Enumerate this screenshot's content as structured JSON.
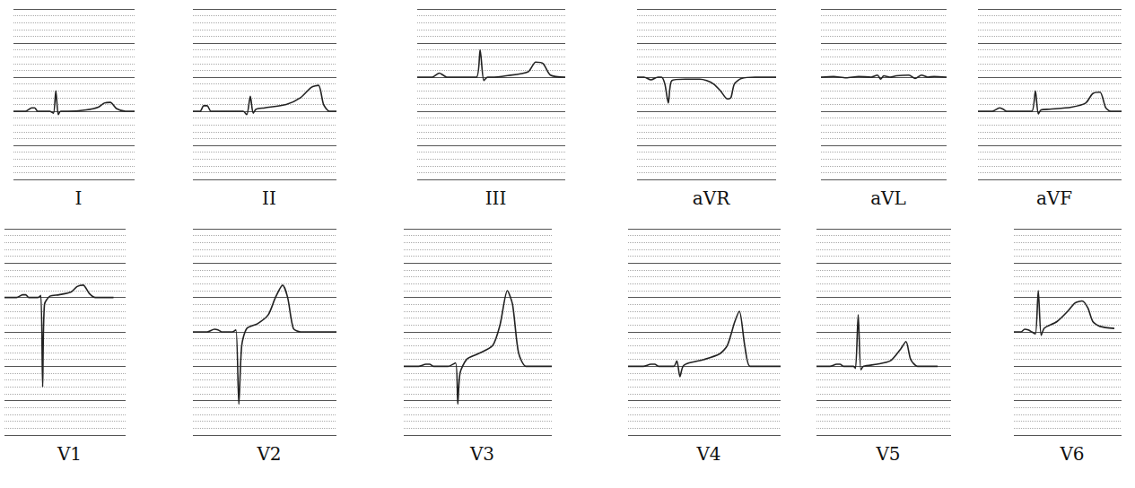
{
  "chart_data": [
    {
      "type": "line",
      "title": "I",
      "color": "#222222",
      "grid": true,
      "tick_labels": false,
      "x": [
        0,
        2,
        3,
        3.5,
        4,
        6,
        6.6,
        7,
        7.4,
        7.8,
        9,
        12,
        14,
        15,
        16,
        17,
        18.5,
        20
      ],
      "values": [
        0,
        0,
        0.5,
        0.5,
        0,
        0,
        -0.3,
        3,
        -0.5,
        0,
        0,
        0.2,
        0.6,
        1.2,
        1.3,
        0.4,
        0,
        0
      ],
      "xlim": [
        0,
        20
      ],
      "xticks": [
        0,
        5,
        10,
        15,
        20
      ],
      "ylim": [
        -10,
        15
      ],
      "yticks": [
        -10,
        -5,
        0,
        5,
        10,
        15
      ]
    },
    {
      "type": "line",
      "title": "II",
      "color": "#222222",
      "grid": true,
      "tick_labels": false,
      "x": [
        0,
        1,
        1.5,
        2,
        2.5,
        3,
        5,
        7,
        7.5,
        8,
        8.4,
        8.8,
        10,
        13,
        15,
        16.5,
        17.5,
        18.2,
        19,
        20
      ],
      "values": [
        0,
        0,
        0.8,
        0.8,
        0,
        0,
        0,
        0,
        -0.5,
        2.2,
        -0.3,
        0.3,
        0.5,
        1,
        2,
        3.5,
        3.8,
        1,
        0,
        0
      ],
      "xlim": [
        0,
        20
      ],
      "xticks": [
        0,
        5,
        10,
        15,
        20
      ],
      "ylim": [
        -10,
        15
      ],
      "yticks": [
        -10,
        -5,
        0,
        5,
        10,
        15
      ]
    },
    {
      "type": "line",
      "title": "III",
      "color": "#222222",
      "grid": true,
      "tick_labels": false,
      "x": [
        0,
        2,
        3,
        3.5,
        4,
        6,
        8,
        8.5,
        9,
        9.5,
        10,
        12,
        15,
        16,
        17,
        18,
        20
      ],
      "values": [
        0,
        0,
        0.6,
        0.3,
        0,
        0,
        0,
        4,
        -0.5,
        0,
        0,
        0.2,
        0.8,
        2.2,
        2,
        0.3,
        0
      ],
      "xlim": [
        0,
        20
      ],
      "xticks": [
        0,
        5,
        10,
        15,
        20
      ],
      "ylim": [
        -15,
        10
      ],
      "yticks": [
        -15,
        -10,
        -5,
        0,
        5,
        10
      ]
    },
    {
      "type": "line",
      "title": "aVR",
      "color": "#222222",
      "grid": true,
      "tick_labels": false,
      "x": [
        0,
        1,
        2,
        3,
        3.5,
        4,
        4.5,
        5,
        7,
        9,
        10,
        11,
        12,
        13,
        13.5,
        14,
        15,
        17,
        20
      ],
      "values": [
        0,
        0,
        -0.4,
        0,
        0,
        -1,
        -3.8,
        -0.5,
        -0.3,
        -0.3,
        -0.5,
        -1,
        -2,
        -3.2,
        -3,
        -1,
        -0.2,
        0,
        0
      ],
      "xlim": [
        0,
        20
      ],
      "xticks": [
        0,
        5,
        10,
        15,
        20
      ],
      "ylim": [
        -15,
        10
      ],
      "yticks": [
        -15,
        -10,
        -5,
        0,
        5,
        10
      ]
    },
    {
      "type": "line",
      "title": "aVL",
      "color": "#222222",
      "grid": true,
      "tick_labels": false,
      "x": [
        0,
        2,
        4,
        6,
        8,
        9,
        9.5,
        10,
        11,
        12,
        14,
        15,
        16,
        17,
        18,
        20
      ],
      "values": [
        0,
        0.1,
        -0.1,
        0.1,
        0,
        0.3,
        -0.3,
        0.2,
        0,
        0.2,
        0.3,
        -0.2,
        0.3,
        0,
        0.1,
        0
      ],
      "xlim": [
        0,
        20
      ],
      "xticks": [
        0,
        5,
        10,
        15,
        20
      ],
      "ylim": [
        -15,
        10
      ],
      "yticks": [
        -15,
        -10,
        -5,
        0,
        5,
        10
      ]
    },
    {
      "type": "line",
      "title": "aVF",
      "color": "#222222",
      "grid": true,
      "tick_labels": false,
      "x": [
        0,
        2,
        3,
        3.5,
        4,
        6,
        7.5,
        8,
        8.4,
        8.8,
        10,
        13,
        15,
        16,
        17,
        17.8,
        18.5,
        20
      ],
      "values": [
        0,
        0,
        0.5,
        0.3,
        0,
        0,
        0,
        3,
        -0.4,
        0.2,
        0.3,
        0.6,
        1.2,
        2.6,
        2.8,
        0.5,
        0,
        0
      ],
      "xlim": [
        0,
        20
      ],
      "xticks": [
        0,
        5,
        10,
        15,
        20
      ],
      "ylim": [
        -10,
        15
      ],
      "yticks": [
        -10,
        -5,
        0,
        5,
        10,
        15
      ]
    },
    {
      "type": "line",
      "title": "V1",
      "color": "#222222",
      "grid": true,
      "tick_labels": false,
      "x": [
        0,
        2,
        3,
        3.5,
        4,
        5.5,
        6,
        6.3,
        6.6,
        7.5,
        9,
        11,
        12,
        13,
        14,
        15,
        16,
        18
      ],
      "values": [
        0,
        0,
        0.4,
        0.4,
        0,
        0,
        0.3,
        -13,
        -1,
        0.2,
        0.4,
        0.8,
        1.6,
        1.8,
        0.6,
        0,
        0,
        0
      ],
      "xlim": [
        0,
        20
      ],
      "xticks": [
        0,
        5,
        10,
        15,
        20
      ],
      "ylim": [
        -20,
        10
      ],
      "yticks": [
        -20,
        -15,
        -10,
        -5,
        0,
        5,
        10
      ]
    },
    {
      "type": "line",
      "title": "V2",
      "color": "#222222",
      "grid": true,
      "tick_labels": false,
      "x": [
        0,
        2,
        3,
        3.5,
        4,
        5.5,
        6,
        6.4,
        6.8,
        7.5,
        9,
        10.5,
        11.5,
        12.5,
        13.2,
        14,
        15,
        17,
        20
      ],
      "values": [
        0,
        0,
        0.4,
        0.3,
        0,
        0,
        0.3,
        -10.5,
        -2,
        0.5,
        1.2,
        2.5,
        5,
        6.8,
        5,
        0.5,
        0,
        0,
        0
      ],
      "xlim": [
        0,
        20
      ],
      "xticks": [
        0,
        5,
        10,
        15,
        20
      ],
      "ylim": [
        -15,
        15
      ],
      "yticks": [
        -15,
        -10,
        -5,
        0,
        5,
        10,
        15
      ]
    },
    {
      "type": "line",
      "title": "V3",
      "color": "#222222",
      "grid": true,
      "tick_labels": false,
      "x": [
        0,
        2,
        3,
        3.5,
        4,
        6,
        7,
        7.3,
        7.6,
        8.5,
        10,
        12,
        13,
        14,
        14.7,
        15.5,
        16.5,
        18,
        20
      ],
      "values": [
        0,
        0,
        0.3,
        0.3,
        0,
        0,
        0.5,
        -5.5,
        -1,
        1,
        1.8,
        3,
        6,
        11,
        9,
        2,
        0,
        0,
        0
      ],
      "xlim": [
        0,
        20
      ],
      "xticks": [
        0,
        5,
        10,
        15,
        20
      ],
      "ylim": [
        -10,
        20
      ],
      "yticks": [
        -10,
        -5,
        0,
        5,
        10,
        15,
        20
      ]
    },
    {
      "type": "line",
      "title": "V4",
      "color": "#222222",
      "grid": true,
      "tick_labels": false,
      "x": [
        0,
        2,
        3,
        3.5,
        4,
        6,
        6.4,
        6.8,
        7.2,
        8,
        10,
        12,
        13,
        14,
        14.6,
        15.3,
        16,
        18,
        20
      ],
      "values": [
        0,
        0,
        0.3,
        0.3,
        0,
        0,
        0.8,
        -1.5,
        0,
        0.5,
        1,
        1.8,
        3,
        6.5,
        8,
        3,
        0,
        0,
        0
      ],
      "xlim": [
        0,
        20
      ],
      "xticks": [
        0,
        5,
        10,
        15,
        20
      ],
      "ylim": [
        -10,
        20
      ],
      "yticks": [
        -10,
        -5,
        0,
        5,
        10,
        15,
        20
      ]
    },
    {
      "type": "line",
      "title": "V5",
      "color": "#222222",
      "grid": true,
      "tick_labels": false,
      "x": [
        0,
        2,
        3,
        3.5,
        4,
        5.5,
        5.8,
        6.2,
        6.6,
        7,
        9,
        11,
        12.5,
        13.3,
        14,
        15,
        17,
        18
      ],
      "values": [
        0,
        0,
        0.3,
        0.3,
        0,
        0,
        -0.3,
        7.5,
        -0.5,
        0,
        0.3,
        0.8,
        2.5,
        3.6,
        1,
        0,
        0,
        0
      ],
      "xlim": [
        0,
        20
      ],
      "xticks": [
        0,
        5,
        10,
        15,
        20
      ],
      "ylim": [
        -10,
        20
      ],
      "yticks": [
        -10,
        -5,
        0,
        5,
        10,
        15,
        20
      ]
    },
    {
      "type": "line",
      "title": "V6",
      "color": "#222222",
      "grid": true,
      "tick_labels": false,
      "x": [
        0,
        1,
        1.5,
        2,
        2.5,
        3,
        3.4,
        3.8,
        4.2,
        4.6,
        6,
        7.5,
        8.5,
        9.5,
        10.3,
        11,
        12,
        14
      ],
      "values": [
        0,
        0,
        0.4,
        0.3,
        0,
        -0.3,
        6,
        -0.5,
        0.5,
        0.8,
        1.5,
        3,
        4.2,
        4.5,
        3.5,
        1.5,
        0.8,
        0.5
      ],
      "xlim": [
        0,
        15
      ],
      "xticks": [
        0,
        5,
        10,
        15
      ],
      "ylim": [
        -15,
        15
      ],
      "yticks": [
        -15,
        -10,
        -5,
        0,
        5,
        10,
        15
      ]
    }
  ]
}
